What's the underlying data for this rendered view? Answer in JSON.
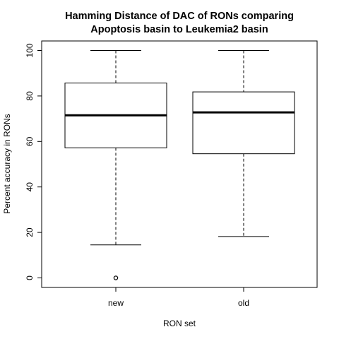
{
  "chart_data": {
    "type": "box",
    "title_lines": [
      "Hamming Distance of DAC of RONs comparing",
      "Apoptosis basin to Leukemia2 basin"
    ],
    "xlabel": "RON set",
    "ylabel": "Percent accuracy in RONs",
    "ylim": [
      0,
      100
    ],
    "y_ticks": [
      0,
      20,
      40,
      60,
      80,
      100
    ],
    "grid": false,
    "categories": [
      "new",
      "old"
    ],
    "boxes": [
      {
        "name": "new",
        "whisker_low": 14.5,
        "q1": 57.2,
        "median": 71.5,
        "q3": 85.7,
        "whisker_high": 100,
        "outliers": [
          0
        ]
      },
      {
        "name": "old",
        "whisker_low": 18.2,
        "q1": 54.6,
        "median": 72.8,
        "q3": 81.8,
        "whisker_high": 100,
        "outliers": []
      }
    ]
  }
}
